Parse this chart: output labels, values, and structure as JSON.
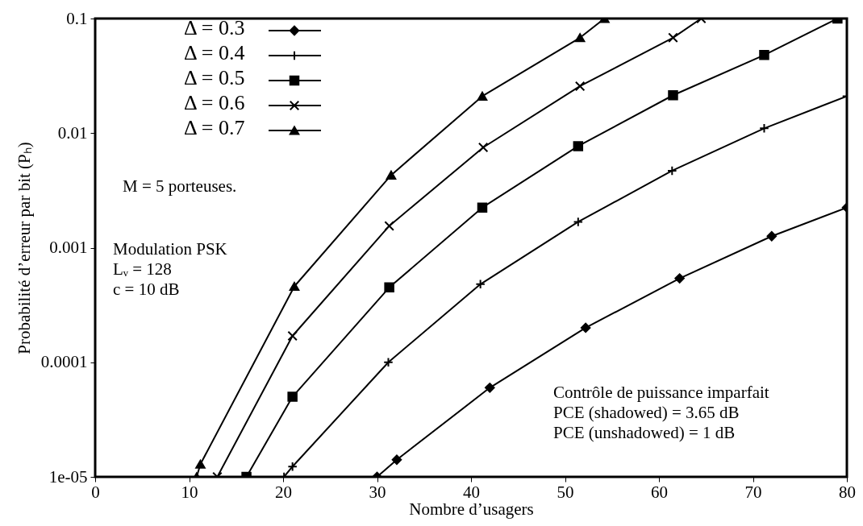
{
  "chart_data": {
    "type": "line",
    "xlabel": "Nombre d’usagers",
    "ylabel": "Probabilité d’erreur par bit (Pₕ)",
    "xlim": [
      0,
      80
    ],
    "xticks": [
      0,
      10,
      20,
      30,
      40,
      50,
      60,
      70,
      80
    ],
    "ylim": [
      1e-05,
      0.1
    ],
    "yticks": [
      {
        "value": 1e-05,
        "label": "1e-05"
      },
      0.0001,
      0.001,
      0.01,
      0.1
    ],
    "log": "y",
    "grid": false,
    "legend": "top left",
    "line_style": "solid",
    "series": [
      {
        "name": "Δ = 0.3",
        "color": "#000000",
        "marker": "diamond",
        "x": [
          30,
          32.1,
          42,
          52.2,
          62.2,
          72,
          80
        ],
        "values": [
          1e-05,
          1.41e-05,
          6e-05,
          0.0002,
          0.00054,
          0.00126,
          0.00224
        ]
      },
      {
        "name": "Δ = 0.4",
        "color": "#000000",
        "marker": "plus",
        "x": [
          20.1,
          21,
          31.2,
          41,
          51.4,
          61.4,
          71.2,
          80
        ],
        "values": [
          1e-05,
          1.23e-05,
          0.0001,
          0.00048,
          0.00168,
          0.0047,
          0.011,
          0.021
        ]
      },
      {
        "name": "Δ = 0.5",
        "color": "#000000",
        "marker": "square",
        "x": [
          16.1,
          21,
          31.3,
          41.2,
          51.4,
          61.5,
          71.2,
          79
        ],
        "values": [
          1e-05,
          5e-05,
          0.00045,
          0.00224,
          0.0077,
          0.0214,
          0.048,
          0.1
        ]
      },
      {
        "name": "Δ = 0.6",
        "color": "#000000",
        "marker": "cross",
        "x": [
          13,
          21,
          31.3,
          41.3,
          51.6,
          61.5,
          64.5
        ],
        "values": [
          1e-05,
          0.00017,
          0.00155,
          0.0075,
          0.0257,
          0.068,
          0.1
        ]
      },
      {
        "name": "Δ = 0.7",
        "color": "#000000",
        "marker": "triangle",
        "x": [
          10.8,
          11.2,
          21.2,
          31.5,
          41.2,
          51.6,
          54.2
        ],
        "values": [
          1e-05,
          1.29e-05,
          0.00046,
          0.0043,
          0.021,
          0.068,
          0.1
        ]
      }
    ],
    "annotations": [
      "M = 5 porteuses.",
      "Modulation PSK\nLᵥ = 128\nc = 10 dB",
      "Contrôle de puissance imparfait\nPCE (shadowed) = 3.65 dB\nPCE (unshadowed) = 1 dB"
    ]
  }
}
